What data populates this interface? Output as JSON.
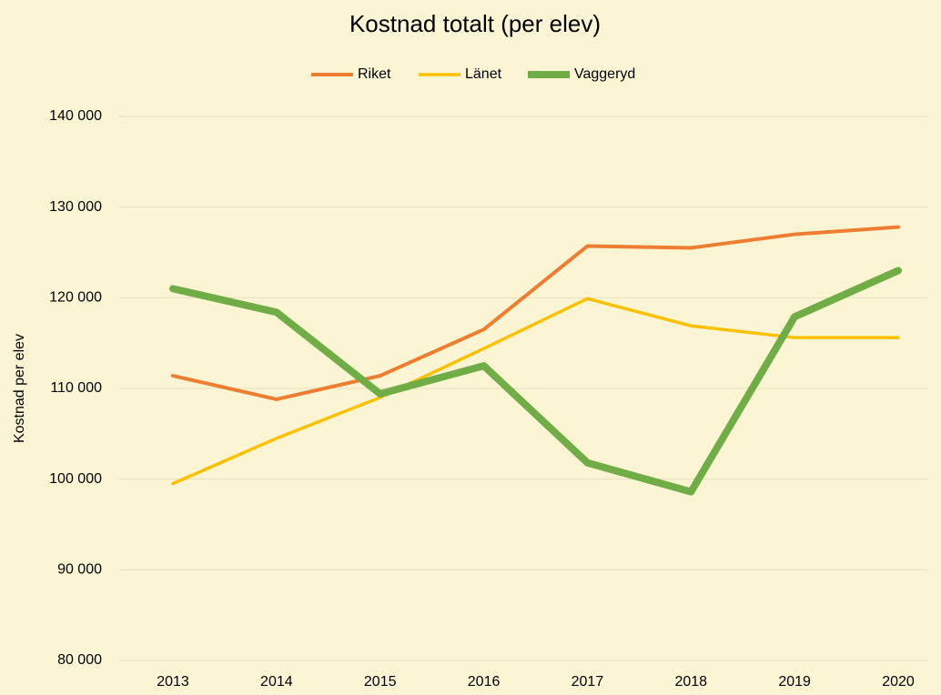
{
  "chart_data": {
    "type": "line",
    "title": "Kostnad totalt (per elev)",
    "y_label": "Kostnad per elev",
    "categories": [
      "2013",
      "2014",
      "2015",
      "2016",
      "2017",
      "2018",
      "2019",
      "2020"
    ],
    "series": [
      {
        "name": "Riket",
        "color": "#ed7d31",
        "values": [
          111400,
          108800,
          111400,
          116500,
          125700,
          125500,
          127000,
          127800
        ]
      },
      {
        "name": "Länet",
        "color": "#ffc000",
        "values": [
          99500,
          104500,
          109000,
          114400,
          119900,
          116900,
          115600,
          115600
        ]
      },
      {
        "name": "Vaggeryd",
        "color": "#70ad47",
        "values": [
          121000,
          118400,
          109400,
          112500,
          101800,
          98600,
          117900,
          123000
        ]
      }
    ],
    "ylim": [
      80000,
      140000
    ],
    "yticks": [
      {
        "value": 80000,
        "label": "80 000"
      },
      {
        "value": 90000,
        "label": "90 000"
      },
      {
        "value": 100000,
        "label": "100 000"
      },
      {
        "value": 110000,
        "label": "110 000"
      },
      {
        "value": 120000,
        "label": "120 000"
      },
      {
        "value": 130000,
        "label": "130 000"
      },
      {
        "value": 140000,
        "label": "140 000"
      }
    ],
    "grid": true,
    "legend": "top"
  }
}
